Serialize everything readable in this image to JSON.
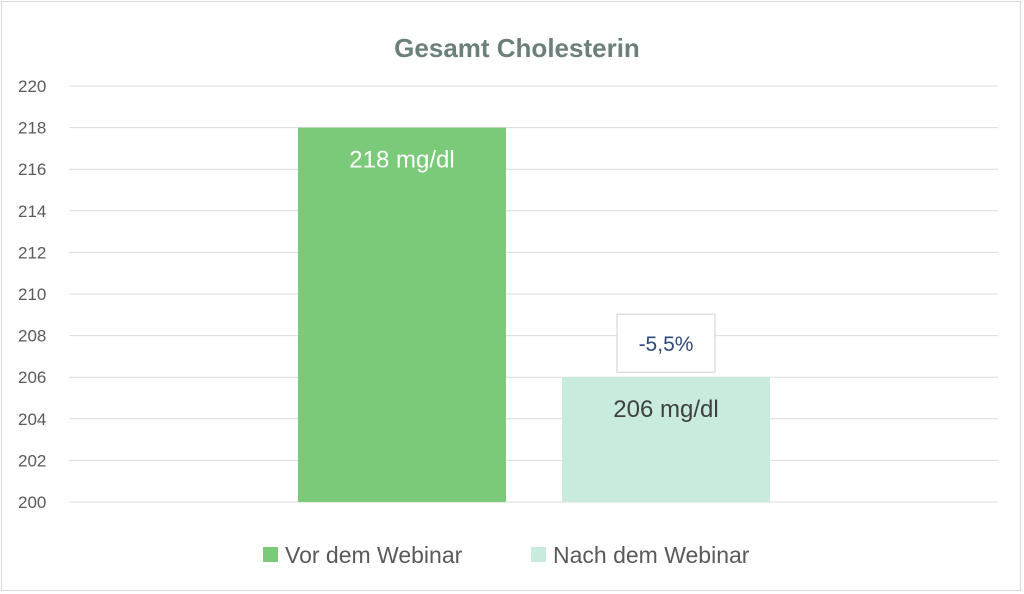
{
  "chart_data": {
    "type": "bar",
    "title": "Gesamt Cholesterin",
    "categories": [
      "Vor dem Webinar",
      "Nach dem Webinar"
    ],
    "values": [
      218,
      206
    ],
    "data_labels": [
      "218 mg/dl",
      "206 mg/dl"
    ],
    "colors": [
      "#7aca7a",
      "#c8ebde"
    ],
    "label_colors": [
      "#ffffff",
      "#404040"
    ],
    "ylim": [
      200,
      220
    ],
    "yticks": [
      "200",
      "202",
      "204",
      "206",
      "208",
      "210",
      "212",
      "214",
      "216",
      "218",
      "220"
    ],
    "ytick_values": [
      200,
      202,
      204,
      206,
      208,
      210,
      212,
      214,
      216,
      218,
      220
    ],
    "grid": true,
    "legend_position": "bottom",
    "legend": [
      "Vor dem Webinar",
      "Nach dem Webinar"
    ],
    "annotation": {
      "text": "-5,5%",
      "category": "Nach dem Webinar"
    }
  }
}
